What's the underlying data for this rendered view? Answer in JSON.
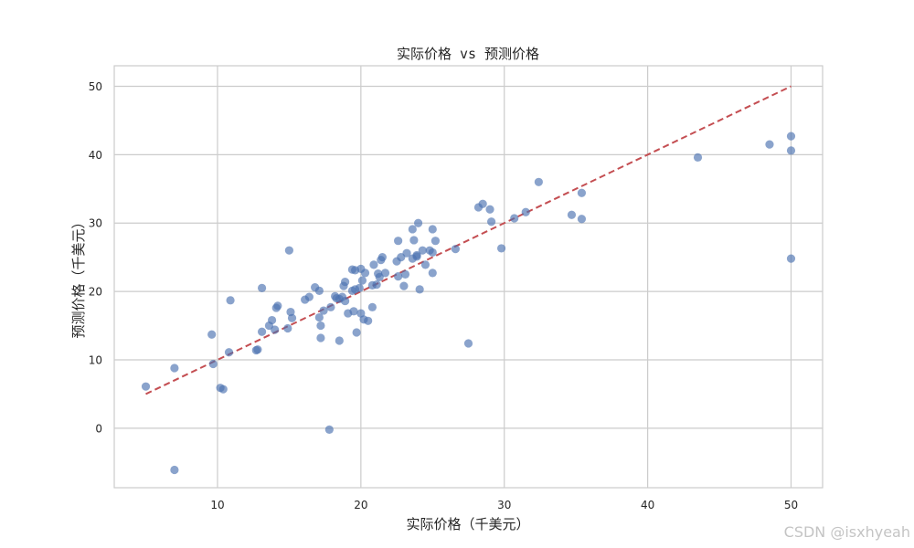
{
  "chart_data": {
    "type": "scatter",
    "title": "实际价格 vs 预测价格",
    "xlabel": "实际价格（千美元）",
    "ylabel": "预测价格（千美元）",
    "xlim": [
      2.8,
      52.2
    ],
    "ylim": [
      -8.7,
      53.0
    ],
    "xticks": [
      10,
      20,
      30,
      40,
      50
    ],
    "yticks": [
      0,
      10,
      20,
      30,
      40,
      50
    ],
    "grid": true,
    "point_color": "#4c72b0",
    "line_color": "#c44e52",
    "reference_line": {
      "style": "dashed",
      "x": [
        5,
        50
      ],
      "y": [
        5,
        50
      ]
    },
    "points": [
      {
        "x": 5.0,
        "y": 6.1
      },
      {
        "x": 7.0,
        "y": 8.8
      },
      {
        "x": 7.0,
        "y": -6.1
      },
      {
        "x": 9.6,
        "y": 13.7
      },
      {
        "x": 9.7,
        "y": 9.4
      },
      {
        "x": 10.2,
        "y": 5.9
      },
      {
        "x": 10.4,
        "y": 5.7
      },
      {
        "x": 10.8,
        "y": 11.1
      },
      {
        "x": 10.9,
        "y": 18.7
      },
      {
        "x": 12.7,
        "y": 11.4
      },
      {
        "x": 12.8,
        "y": 11.5
      },
      {
        "x": 13.1,
        "y": 20.5
      },
      {
        "x": 13.1,
        "y": 14.1
      },
      {
        "x": 13.6,
        "y": 15.0
      },
      {
        "x": 13.8,
        "y": 15.8
      },
      {
        "x": 14.0,
        "y": 14.4
      },
      {
        "x": 14.1,
        "y": 17.6
      },
      {
        "x": 14.2,
        "y": 17.9
      },
      {
        "x": 14.9,
        "y": 14.6
      },
      {
        "x": 15.0,
        "y": 26.0
      },
      {
        "x": 15.1,
        "y": 17.0
      },
      {
        "x": 15.2,
        "y": 16.1
      },
      {
        "x": 16.1,
        "y": 18.8
      },
      {
        "x": 16.4,
        "y": 19.2
      },
      {
        "x": 16.8,
        "y": 20.6
      },
      {
        "x": 17.1,
        "y": 20.1
      },
      {
        "x": 17.1,
        "y": 16.2
      },
      {
        "x": 17.2,
        "y": 15.0
      },
      {
        "x": 17.2,
        "y": 13.2
      },
      {
        "x": 17.4,
        "y": 17.2
      },
      {
        "x": 17.9,
        "y": 17.7
      },
      {
        "x": 17.8,
        "y": -0.2
      },
      {
        "x": 18.2,
        "y": 19.3
      },
      {
        "x": 18.3,
        "y": 19.0
      },
      {
        "x": 18.5,
        "y": 18.9
      },
      {
        "x": 18.5,
        "y": 12.8
      },
      {
        "x": 18.7,
        "y": 19.2
      },
      {
        "x": 18.9,
        "y": 18.6
      },
      {
        "x": 18.8,
        "y": 20.8
      },
      {
        "x": 18.9,
        "y": 21.4
      },
      {
        "x": 19.1,
        "y": 16.8
      },
      {
        "x": 19.4,
        "y": 23.2
      },
      {
        "x": 19.4,
        "y": 20.1
      },
      {
        "x": 19.5,
        "y": 17.1
      },
      {
        "x": 19.6,
        "y": 20.3
      },
      {
        "x": 19.6,
        "y": 23.1
      },
      {
        "x": 19.7,
        "y": 14.0
      },
      {
        "x": 19.9,
        "y": 20.5
      },
      {
        "x": 20.0,
        "y": 16.8
      },
      {
        "x": 20.0,
        "y": 23.3
      },
      {
        "x": 20.1,
        "y": 21.6
      },
      {
        "x": 20.2,
        "y": 15.9
      },
      {
        "x": 20.3,
        "y": 22.7
      },
      {
        "x": 20.5,
        "y": 15.7
      },
      {
        "x": 20.8,
        "y": 17.7
      },
      {
        "x": 20.8,
        "y": 20.9
      },
      {
        "x": 20.9,
        "y": 23.9
      },
      {
        "x": 21.1,
        "y": 21.0
      },
      {
        "x": 21.2,
        "y": 22.6
      },
      {
        "x": 21.3,
        "y": 22.1
      },
      {
        "x": 21.4,
        "y": 24.6
      },
      {
        "x": 21.5,
        "y": 25.0
      },
      {
        "x": 21.7,
        "y": 22.7
      },
      {
        "x": 22.5,
        "y": 24.4
      },
      {
        "x": 22.6,
        "y": 22.2
      },
      {
        "x": 22.6,
        "y": 27.4
      },
      {
        "x": 22.8,
        "y": 25.0
      },
      {
        "x": 23.0,
        "y": 20.8
      },
      {
        "x": 23.1,
        "y": 22.5
      },
      {
        "x": 23.2,
        "y": 25.6
      },
      {
        "x": 23.6,
        "y": 29.1
      },
      {
        "x": 23.6,
        "y": 24.8
      },
      {
        "x": 23.7,
        "y": 27.5
      },
      {
        "x": 23.9,
        "y": 25.1
      },
      {
        "x": 23.9,
        "y": 25.3
      },
      {
        "x": 24.0,
        "y": 30.0
      },
      {
        "x": 24.1,
        "y": 20.3
      },
      {
        "x": 24.3,
        "y": 26.0
      },
      {
        "x": 24.5,
        "y": 23.9
      },
      {
        "x": 24.8,
        "y": 26.0
      },
      {
        "x": 25.0,
        "y": 22.7
      },
      {
        "x": 25.0,
        "y": 25.7
      },
      {
        "x": 25.0,
        "y": 29.1
      },
      {
        "x": 25.2,
        "y": 27.4
      },
      {
        "x": 26.6,
        "y": 26.2
      },
      {
        "x": 27.5,
        "y": 12.4
      },
      {
        "x": 28.2,
        "y": 32.3
      },
      {
        "x": 28.5,
        "y": 32.8
      },
      {
        "x": 29.0,
        "y": 32.0
      },
      {
        "x": 29.1,
        "y": 30.2
      },
      {
        "x": 29.8,
        "y": 26.3
      },
      {
        "x": 30.7,
        "y": 30.7
      },
      {
        "x": 31.5,
        "y": 31.6
      },
      {
        "x": 32.4,
        "y": 36.0
      },
      {
        "x": 34.7,
        "y": 31.2
      },
      {
        "x": 35.4,
        "y": 34.4
      },
      {
        "x": 35.4,
        "y": 30.6
      },
      {
        "x": 43.5,
        "y": 39.6
      },
      {
        "x": 48.5,
        "y": 41.5
      },
      {
        "x": 50.0,
        "y": 42.7
      },
      {
        "x": 50.0,
        "y": 40.6
      },
      {
        "x": 50.0,
        "y": 24.8
      }
    ]
  },
  "watermark": "CSDN @isxhyeah"
}
